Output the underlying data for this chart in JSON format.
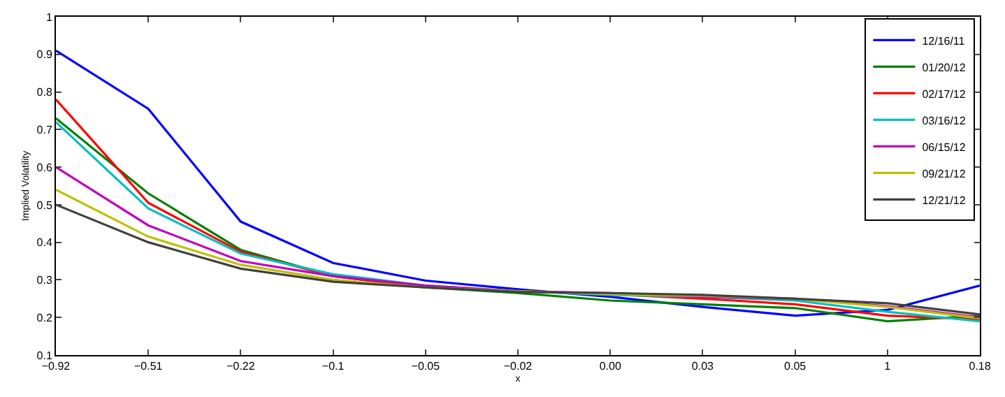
{
  "chart_data": {
    "type": "line",
    "xlabel": "x",
    "ylabel": "Implied Volatility",
    "categories": [
      "−0.92",
      "−0.51",
      "−0.22",
      "−0.1",
      "−0.05",
      "−0.02",
      "0.00",
      "0.03",
      "0.05",
      "1",
      "0.18"
    ],
    "ylim": [
      0.1,
      1
    ],
    "yticks": [
      0.1,
      0.2,
      0.3,
      0.4,
      0.5,
      0.6,
      0.7,
      0.8,
      0.9,
      1
    ],
    "legend": "top right",
    "marker": "none",
    "line_style": "solid",
    "series": [
      {
        "name": "12/16/11",
        "color": "#0000ff",
        "values": [
          0.91,
          0.755,
          0.455,
          0.345,
          0.298,
          0.275,
          0.255,
          0.228,
          0.205,
          0.22,
          0.285
        ]
      },
      {
        "name": "01/20/12",
        "color": "#008000",
        "values": [
          0.73,
          0.53,
          0.38,
          0.31,
          0.28,
          0.265,
          0.245,
          0.235,
          0.225,
          0.19,
          0.205
        ]
      },
      {
        "name": "02/17/12",
        "color": "#ff0000",
        "values": [
          0.78,
          0.505,
          0.375,
          0.31,
          0.28,
          0.27,
          0.262,
          0.25,
          0.235,
          0.205,
          0.195
        ]
      },
      {
        "name": "03/16/12",
        "color": "#00bfbf",
        "values": [
          0.72,
          0.49,
          0.37,
          0.315,
          0.285,
          0.27,
          0.26,
          0.255,
          0.245,
          0.215,
          0.19
        ]
      },
      {
        "name": "06/15/12",
        "color": "#bf00bf",
        "values": [
          0.6,
          0.445,
          0.35,
          0.31,
          0.285,
          0.27,
          0.265,
          0.255,
          0.25,
          0.23,
          0.2
        ]
      },
      {
        "name": "09/21/12",
        "color": "#bfbf00",
        "values": [
          0.54,
          0.415,
          0.34,
          0.3,
          0.28,
          0.27,
          0.262,
          0.258,
          0.25,
          0.228,
          0.198
        ]
      },
      {
        "name": "12/21/12",
        "color": "#404040",
        "values": [
          0.5,
          0.4,
          0.33,
          0.295,
          0.28,
          0.268,
          0.265,
          0.26,
          0.25,
          0.238,
          0.208
        ]
      }
    ]
  }
}
